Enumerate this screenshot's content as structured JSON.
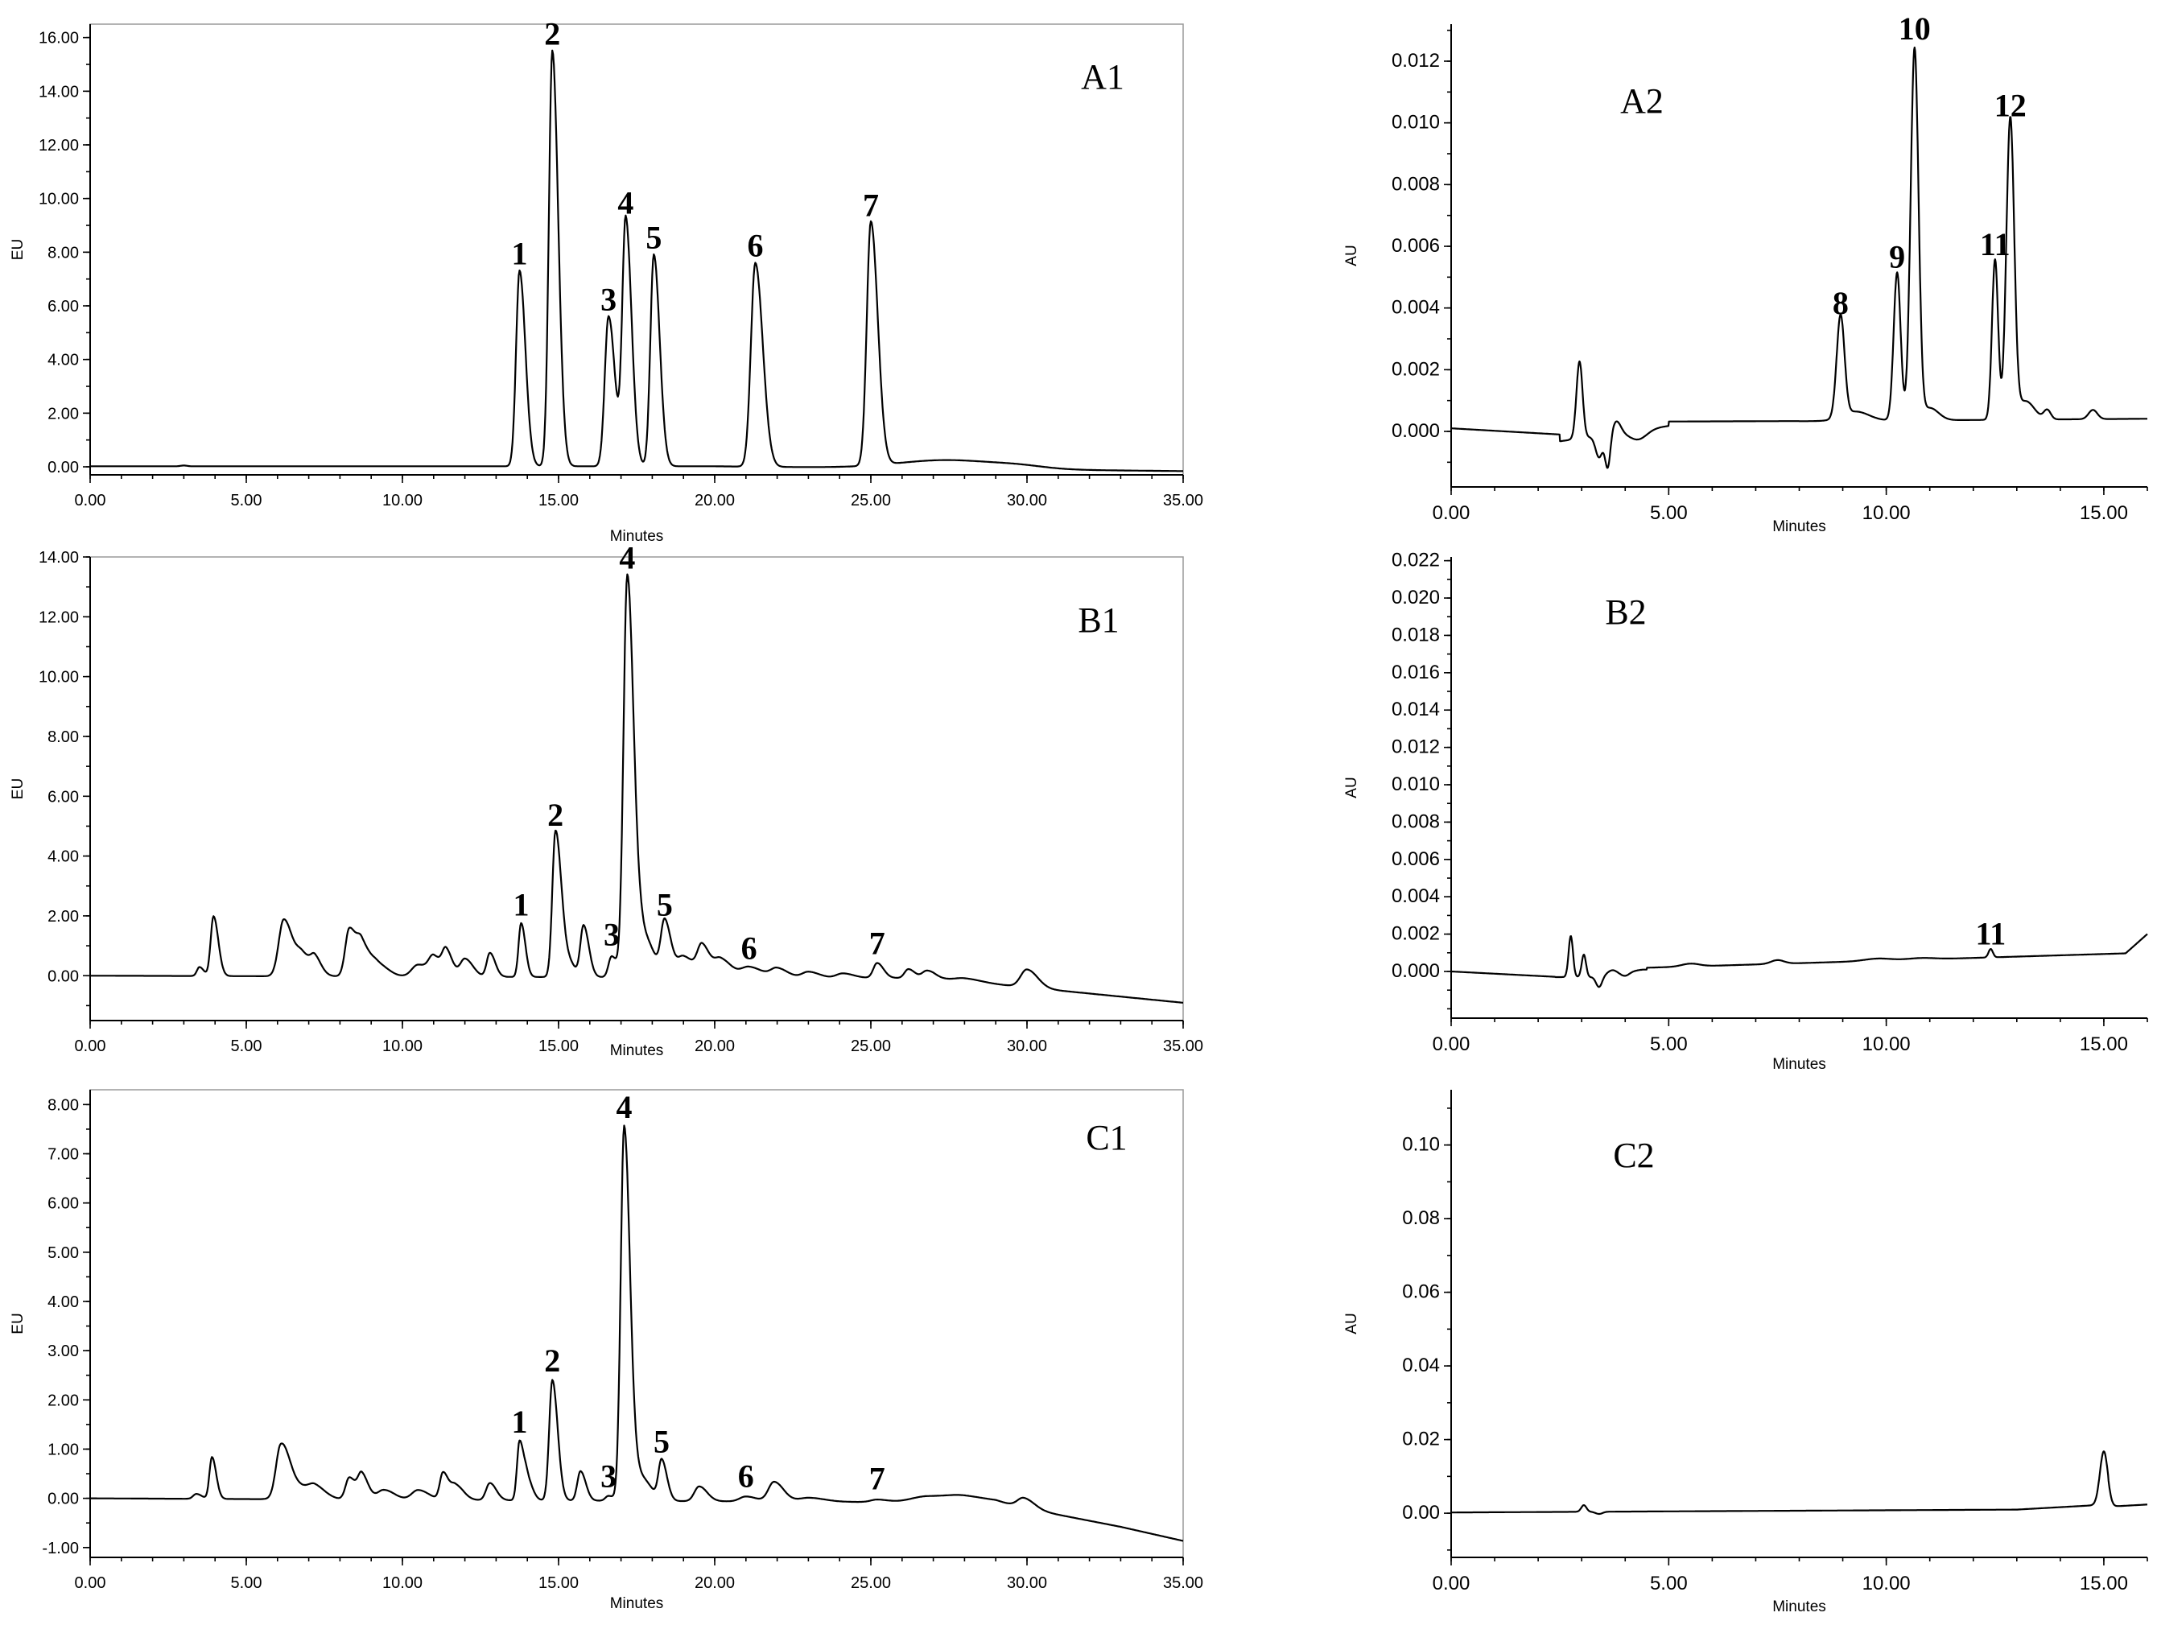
{
  "chart_data": [
    {
      "panel": "A1",
      "type": "line",
      "xlabel": "Minutes",
      "ylabel": "EU",
      "xlim": [
        0,
        35
      ],
      "ylim": [
        -0.3,
        16.5
      ],
      "xticks": [
        "0.00",
        "5.00",
        "10.00",
        "15.00",
        "20.00",
        "25.00",
        "30.00",
        "35.00"
      ],
      "yticks": [
        "0.00",
        "2.00",
        "4.00",
        "6.00",
        "8.00",
        "10.00",
        "12.00",
        "14.00",
        "16.00"
      ],
      "peaks": [
        {
          "label": "1",
          "x": 13.75,
          "y": 7.3
        },
        {
          "label": "2",
          "x": 14.8,
          "y": 15.5
        },
        {
          "label": "3",
          "x": 16.6,
          "y": 5.6
        },
        {
          "label": "4",
          "x": 17.15,
          "y": 9.2
        },
        {
          "label": "5",
          "x": 18.05,
          "y": 7.9
        },
        {
          "label": "6",
          "x": 21.3,
          "y": 7.6
        },
        {
          "label": "7",
          "x": 25.0,
          "y": 9.1
        }
      ]
    },
    {
      "panel": "A2",
      "type": "line",
      "xlabel": "Minutes",
      "ylabel": "AU",
      "xlim": [
        0,
        16
      ],
      "ylim": [
        -0.0018,
        0.0132
      ],
      "xticks": [
        "0.00",
        "5.00",
        "10.00",
        "15.00"
      ],
      "yticks": [
        "0.000",
        "0.002",
        "0.004",
        "0.006",
        "0.008",
        "0.010",
        "0.012"
      ],
      "peaks": [
        {
          "label": "8",
          "x": 8.95,
          "y": 0.0036
        },
        {
          "label": "9",
          "x": 10.25,
          "y": 0.0051
        },
        {
          "label": "10",
          "x": 10.65,
          "y": 0.0125
        },
        {
          "label": "11",
          "x": 12.5,
          "y": 0.0055
        },
        {
          "label": "12",
          "x": 12.85,
          "y": 0.01
        }
      ]
    },
    {
      "panel": "B1",
      "type": "line",
      "xlabel": "Minutes",
      "ylabel": "EU",
      "xlim": [
        0,
        35
      ],
      "ylim": [
        -1.5,
        14.0
      ],
      "xticks": [
        "0.00",
        "5.00",
        "10.00",
        "15.00",
        "20.00",
        "25.00",
        "30.00",
        "35.00"
      ],
      "yticks": [
        "0.00",
        "2.00",
        "4.00",
        "6.00",
        "8.00",
        "10.00",
        "12.00",
        "14.00"
      ],
      "peaks": [
        {
          "label": "1",
          "x": 13.8,
          "y": 1.8
        },
        {
          "label": "2",
          "x": 14.9,
          "y": 4.8
        },
        {
          "label": "3",
          "x": 16.7,
          "y": 0.8
        },
        {
          "label": "4",
          "x": 17.2,
          "y": 13.4
        },
        {
          "label": "5",
          "x": 18.4,
          "y": 1.8
        },
        {
          "label": "6",
          "x": 21.1,
          "y": 0.35
        },
        {
          "label": "7",
          "x": 25.2,
          "y": 0.5
        }
      ]
    },
    {
      "panel": "B2",
      "type": "line",
      "xlabel": "Minutes",
      "ylabel": "AU",
      "xlim": [
        0,
        16
      ],
      "ylim": [
        -0.0025,
        0.0222
      ],
      "xticks": [
        "0.00",
        "5.00",
        "10.00",
        "15.00"
      ],
      "yticks": [
        "0.000",
        "0.002",
        "0.004",
        "0.006",
        "0.008",
        "0.010",
        "0.012",
        "0.014",
        "0.016",
        "0.018",
        "0.020",
        "0.022"
      ],
      "peaks": [
        {
          "label": "11",
          "x": 12.4,
          "y": 0.0011
        }
      ]
    },
    {
      "panel": "C1",
      "type": "line",
      "xlabel": "Minutes",
      "ylabel": "EU",
      "xlim": [
        0,
        35
      ],
      "ylim": [
        -1.2,
        8.3
      ],
      "xticks": [
        "0.00",
        "5.00",
        "10.00",
        "15.00",
        "20.00",
        "25.00",
        "30.00",
        "35.00"
      ],
      "yticks": [
        "-1.00",
        "0.00",
        "1.00",
        "2.00",
        "3.00",
        "4.00",
        "5.00",
        "6.00",
        "7.00",
        "8.00"
      ],
      "peaks": [
        {
          "label": "1",
          "x": 13.75,
          "y": 1.2
        },
        {
          "label": "2",
          "x": 14.8,
          "y": 2.45
        },
        {
          "label": "3",
          "x": 16.6,
          "y": 0.1
        },
        {
          "label": "4",
          "x": 17.1,
          "y": 7.6
        },
        {
          "label": "5",
          "x": 18.3,
          "y": 0.8
        },
        {
          "label": "6",
          "x": 21.0,
          "y": 0.1
        },
        {
          "label": "7",
          "x": 25.2,
          "y": 0.05
        }
      ]
    },
    {
      "panel": "C2",
      "type": "line",
      "xlabel": "Minutes",
      "ylabel": "AU",
      "xlim": [
        0,
        16
      ],
      "ylim": [
        -0.012,
        0.115
      ],
      "xticks": [
        "0.00",
        "5.00",
        "10.00",
        "15.00"
      ],
      "yticks": [
        "0.00",
        "0.02",
        "0.04",
        "0.06",
        "0.08",
        "0.10"
      ],
      "peaks": []
    }
  ]
}
